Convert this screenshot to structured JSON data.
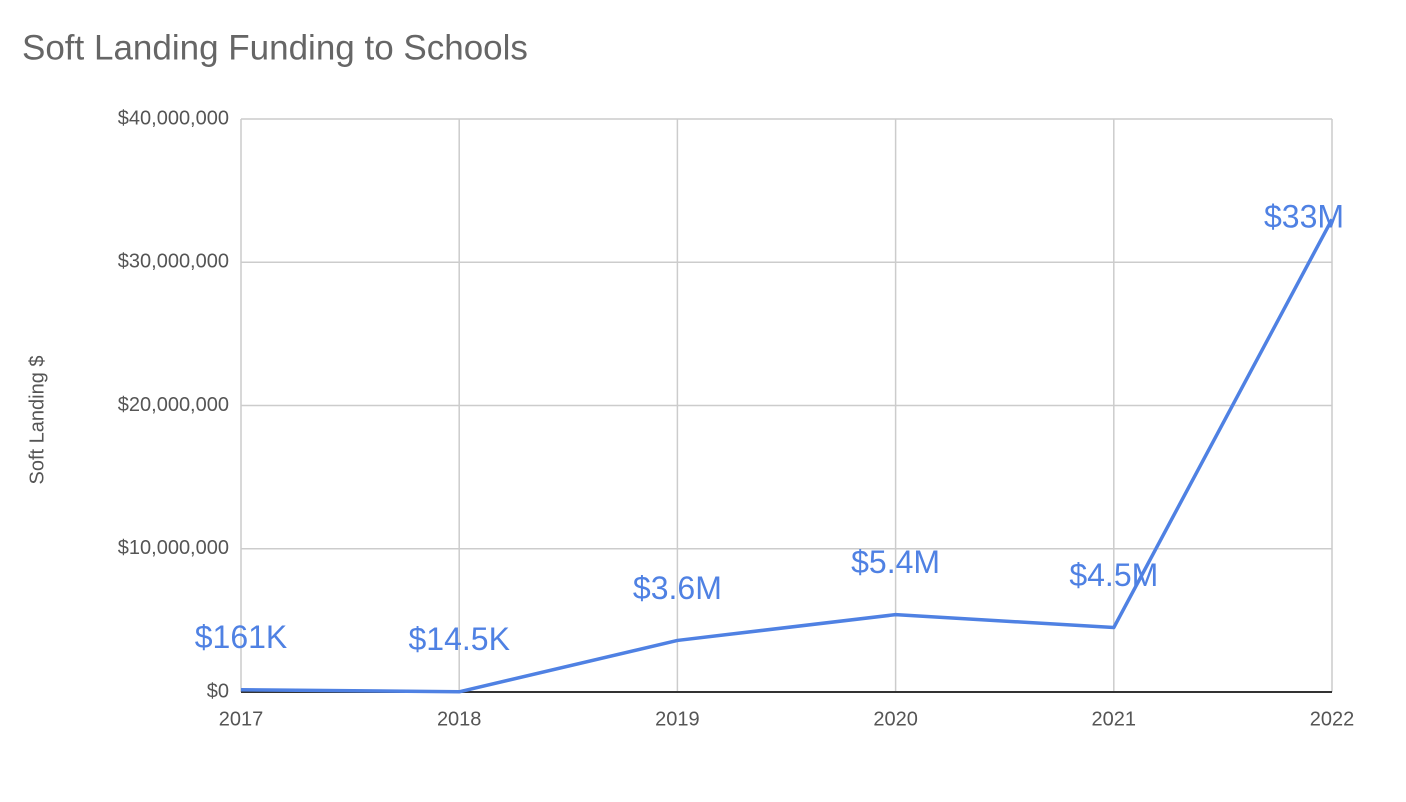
{
  "chart_data": {
    "type": "line",
    "title": "Soft Landing Funding to Schools",
    "y_label": "Soft Landing $",
    "categories": [
      "2017",
      "2018",
      "2019",
      "2020",
      "2021",
      "2022"
    ],
    "series": [
      {
        "name": "Soft Landing $",
        "color": "#4f81e3",
        "values": [
          161000,
          14500,
          3600000,
          5400000,
          4500000,
          33000000
        ],
        "value_labels": [
          "$161K",
          "$14.5K",
          "$3.6M",
          "$5.4M",
          "$4.5M",
          "$33M"
        ]
      }
    ],
    "ylim": [
      0,
      40000000
    ],
    "yticks": [
      {
        "value": 0,
        "label": "$0"
      },
      {
        "value": 10000000,
        "label": "$10,000,000"
      },
      {
        "value": 20000000,
        "label": "$20,000,000"
      },
      {
        "value": 30000000,
        "label": "$30,000,000"
      },
      {
        "value": 40000000,
        "label": "$40,000,000"
      }
    ],
    "grid": true
  }
}
